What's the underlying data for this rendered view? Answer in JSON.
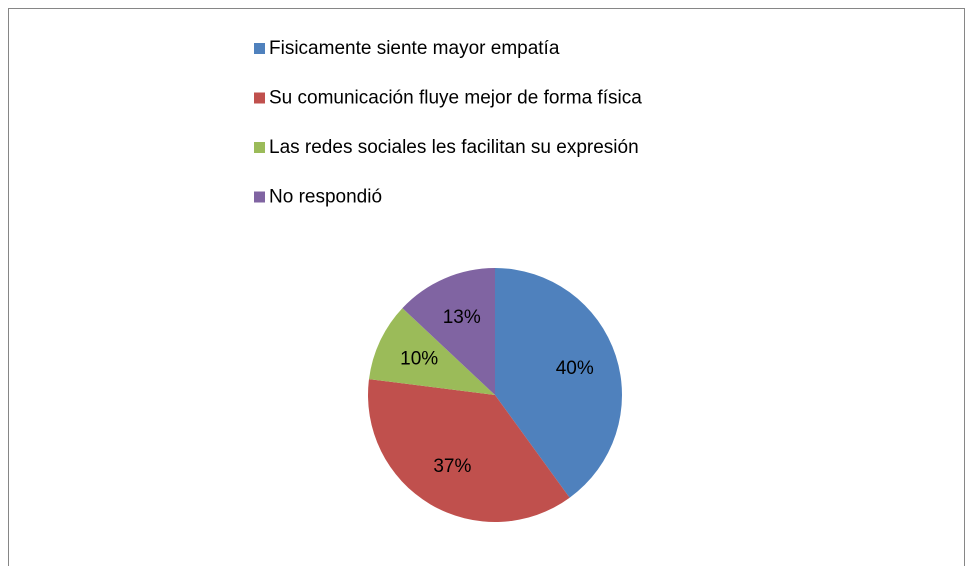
{
  "chart_data": {
    "type": "pie",
    "categories": [
      "Fisicamente siente mayor empatía",
      "Su comunicación fluye mejor de forma física",
      "Las redes sociales les facilitan su expresión",
      "No respondió"
    ],
    "values": [
      40,
      37,
      10,
      13
    ],
    "value_labels": [
      "40%",
      "37%",
      "10%",
      "13%"
    ],
    "colors": [
      "#4f81bd",
      "#c0504d",
      "#9bbb59",
      "#8064a2"
    ],
    "legend": "top"
  }
}
